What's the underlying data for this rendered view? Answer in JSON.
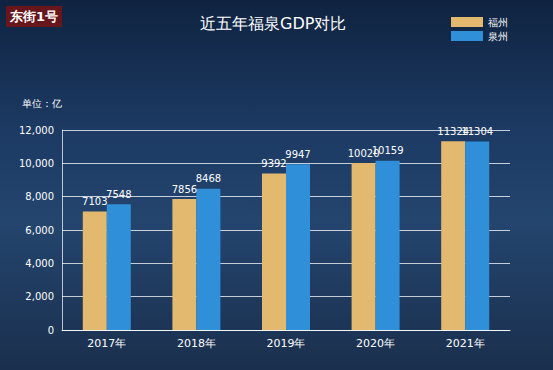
{
  "chart_data": {
    "type": "bar",
    "title": "近五年福泉GDP对比",
    "ylabel": "单位：亿",
    "annotation": "东街1号",
    "categories": [
      "2017年",
      "2018年",
      "2019年",
      "2020年",
      "2021年"
    ],
    "series": [
      {
        "name": "福州",
        "color": "#e2b96f",
        "values": [
          7103,
          7856,
          9392,
          10020,
          11324
        ]
      },
      {
        "name": "泉州",
        "color": "#2f8fd8",
        "values": [
          7548,
          8468,
          9947,
          10159,
          11304
        ]
      }
    ],
    "ylim": [
      0,
      12000
    ],
    "yticks": [
      0,
      2000,
      4000,
      6000,
      8000,
      10000,
      12000
    ],
    "grid": true,
    "legend": "upper right",
    "data_labels": true
  }
}
